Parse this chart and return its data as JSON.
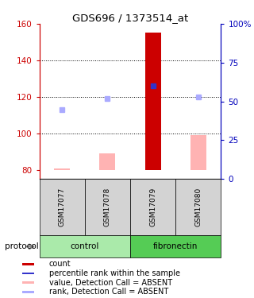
{
  "title": "GDS696 / 1373514_at",
  "samples": [
    "GSM17077",
    "GSM17078",
    "GSM17079",
    "GSM17080"
  ],
  "ylim_left": [
    75,
    160
  ],
  "ylim_right": [
    0,
    100
  ],
  "yticks_left": [
    80,
    100,
    120,
    140,
    160
  ],
  "yticks_right": [
    0,
    25,
    50,
    75,
    100
  ],
  "ytick_labels_right": [
    "0",
    "25",
    "50",
    "75",
    "100%"
  ],
  "bar_values": [
    80.5,
    89.0,
    155.0,
    99.0
  ],
  "bar_colors": [
    "#ffb3b3",
    "#ffb3b3",
    "#cc0000",
    "#ffb3b3"
  ],
  "bar_width": 0.35,
  "rank_squares": [
    113.0,
    119.0,
    126.0,
    120.0
  ],
  "rank_square_colors": [
    "#aaaaff",
    "#aaaaff",
    "#3333cc",
    "#aaaaff"
  ],
  "dotted_line_y": [
    100,
    120,
    140
  ],
  "legend_items": [
    {
      "color": "#cc0000",
      "label": "count"
    },
    {
      "color": "#3333cc",
      "label": "percentile rank within the sample"
    },
    {
      "color": "#ffb3b3",
      "label": "value, Detection Call = ABSENT"
    },
    {
      "color": "#aaaaff",
      "label": "rank, Detection Call = ABSENT"
    }
  ],
  "protocol_label": "protocol",
  "left_axis_color": "#cc0000",
  "right_axis_color": "#0000bb",
  "background_color": "#ffffff",
  "plot_bg_color": "#ffffff",
  "label_area_color": "#d3d3d3",
  "ctrl_color": "#aaeaaa",
  "fib_color": "#55cc55"
}
